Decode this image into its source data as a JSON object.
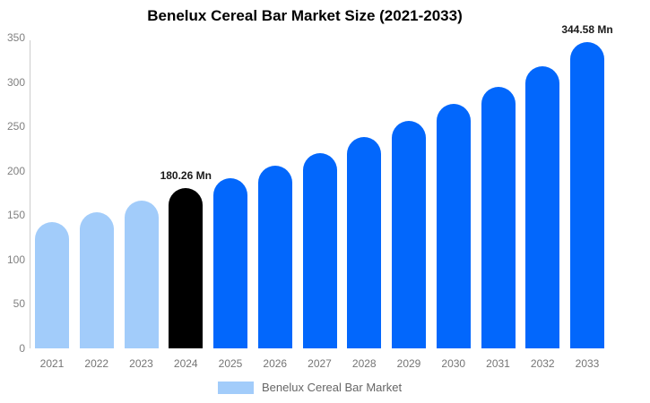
{
  "chart_data": {
    "type": "bar",
    "title": "Benelux Cereal Bar Market Size (2021-2033)",
    "categories": [
      "2021",
      "2022",
      "2023",
      "2024",
      "2025",
      "2026",
      "2027",
      "2028",
      "2029",
      "2030",
      "2031",
      "2032",
      "2033"
    ],
    "values": [
      142,
      153,
      166,
      180.26,
      192,
      206,
      220,
      238,
      256,
      275,
      295,
      318,
      344.58
    ],
    "bar_colors": [
      "#a2ccfa",
      "#a2ccfa",
      "#a2ccfa",
      "#000000",
      "#0267fc",
      "#0267fc",
      "#0267fc",
      "#0267fc",
      "#0267fc",
      "#0267fc",
      "#0267fc",
      "#0267fc",
      "#0267fc"
    ],
    "annotations": [
      {
        "category": "2024",
        "text": "180.26 Mn"
      },
      {
        "category": "2033",
        "text": "344.58 Mn"
      }
    ],
    "xlabel": "",
    "ylabel": "",
    "ylim": [
      0,
      350
    ],
    "yticks": [
      0,
      50,
      100,
      150,
      200,
      250,
      300,
      350
    ],
    "grid": false,
    "legend_position": "bottom"
  },
  "legend": {
    "label": "Benelux Cereal Bar Market",
    "swatch_color": "#a2ccfa"
  },
  "colors": {
    "historical_bar": "#a2ccfa",
    "base_year_bar": "#000000",
    "forecast_bar": "#0267fc",
    "axis_line": "#cccccc",
    "tick_text": "#808080",
    "annotation_text": "#1a1a1a"
  }
}
